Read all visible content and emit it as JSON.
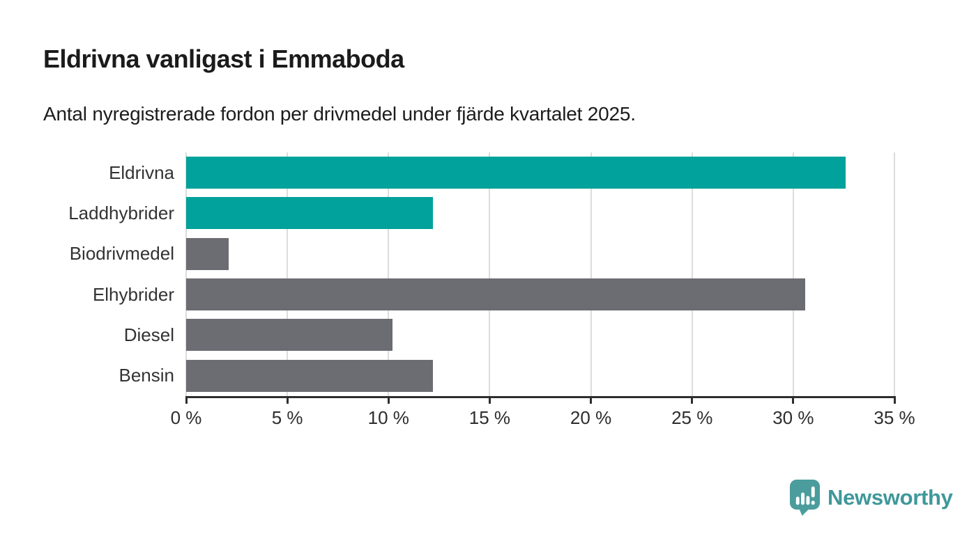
{
  "header": {
    "title": "Eldrivna vanligast i Emmaboda",
    "subtitle": "Antal nyregistrerade fordon per drivmedel under fjärde kvartalet 2025."
  },
  "chart_data": {
    "type": "bar",
    "orientation": "horizontal",
    "title": "Eldrivna vanligast i Emmaboda",
    "subtitle": "Antal nyregistrerade fordon per drivmedel under fjärde kvartalet 2025.",
    "categories": [
      "Eldrivna",
      "Laddhybrider",
      "Biodrivmedel",
      "Elhybrider",
      "Diesel",
      "Bensin"
    ],
    "values": [
      32.6,
      12.2,
      2.1,
      30.6,
      10.2,
      12.2
    ],
    "unit": "%",
    "xlim": [
      0,
      35
    ],
    "x_tick_values": [
      0,
      5,
      10,
      15,
      20,
      25,
      30,
      35
    ],
    "x_tick_labels": [
      "0 %",
      "5 %",
      "10 %",
      "15 %",
      "20 %",
      "25 %",
      "30 %",
      "35 %"
    ],
    "grid": true,
    "legend": "none",
    "bar_colors": [
      "#00A29B",
      "#00A29B",
      "#6C6C73",
      "#6C6C73",
      "#6C6C73",
      "#6C6C73"
    ],
    "highlight_color": "#00A29B",
    "default_color": "#6C6C73"
  },
  "footer": {
    "brand": "Newsworthy",
    "brand_color": "#3F989A",
    "icon": "bar-chart-speech-bubble",
    "icon_color": "#4A9D9C"
  }
}
